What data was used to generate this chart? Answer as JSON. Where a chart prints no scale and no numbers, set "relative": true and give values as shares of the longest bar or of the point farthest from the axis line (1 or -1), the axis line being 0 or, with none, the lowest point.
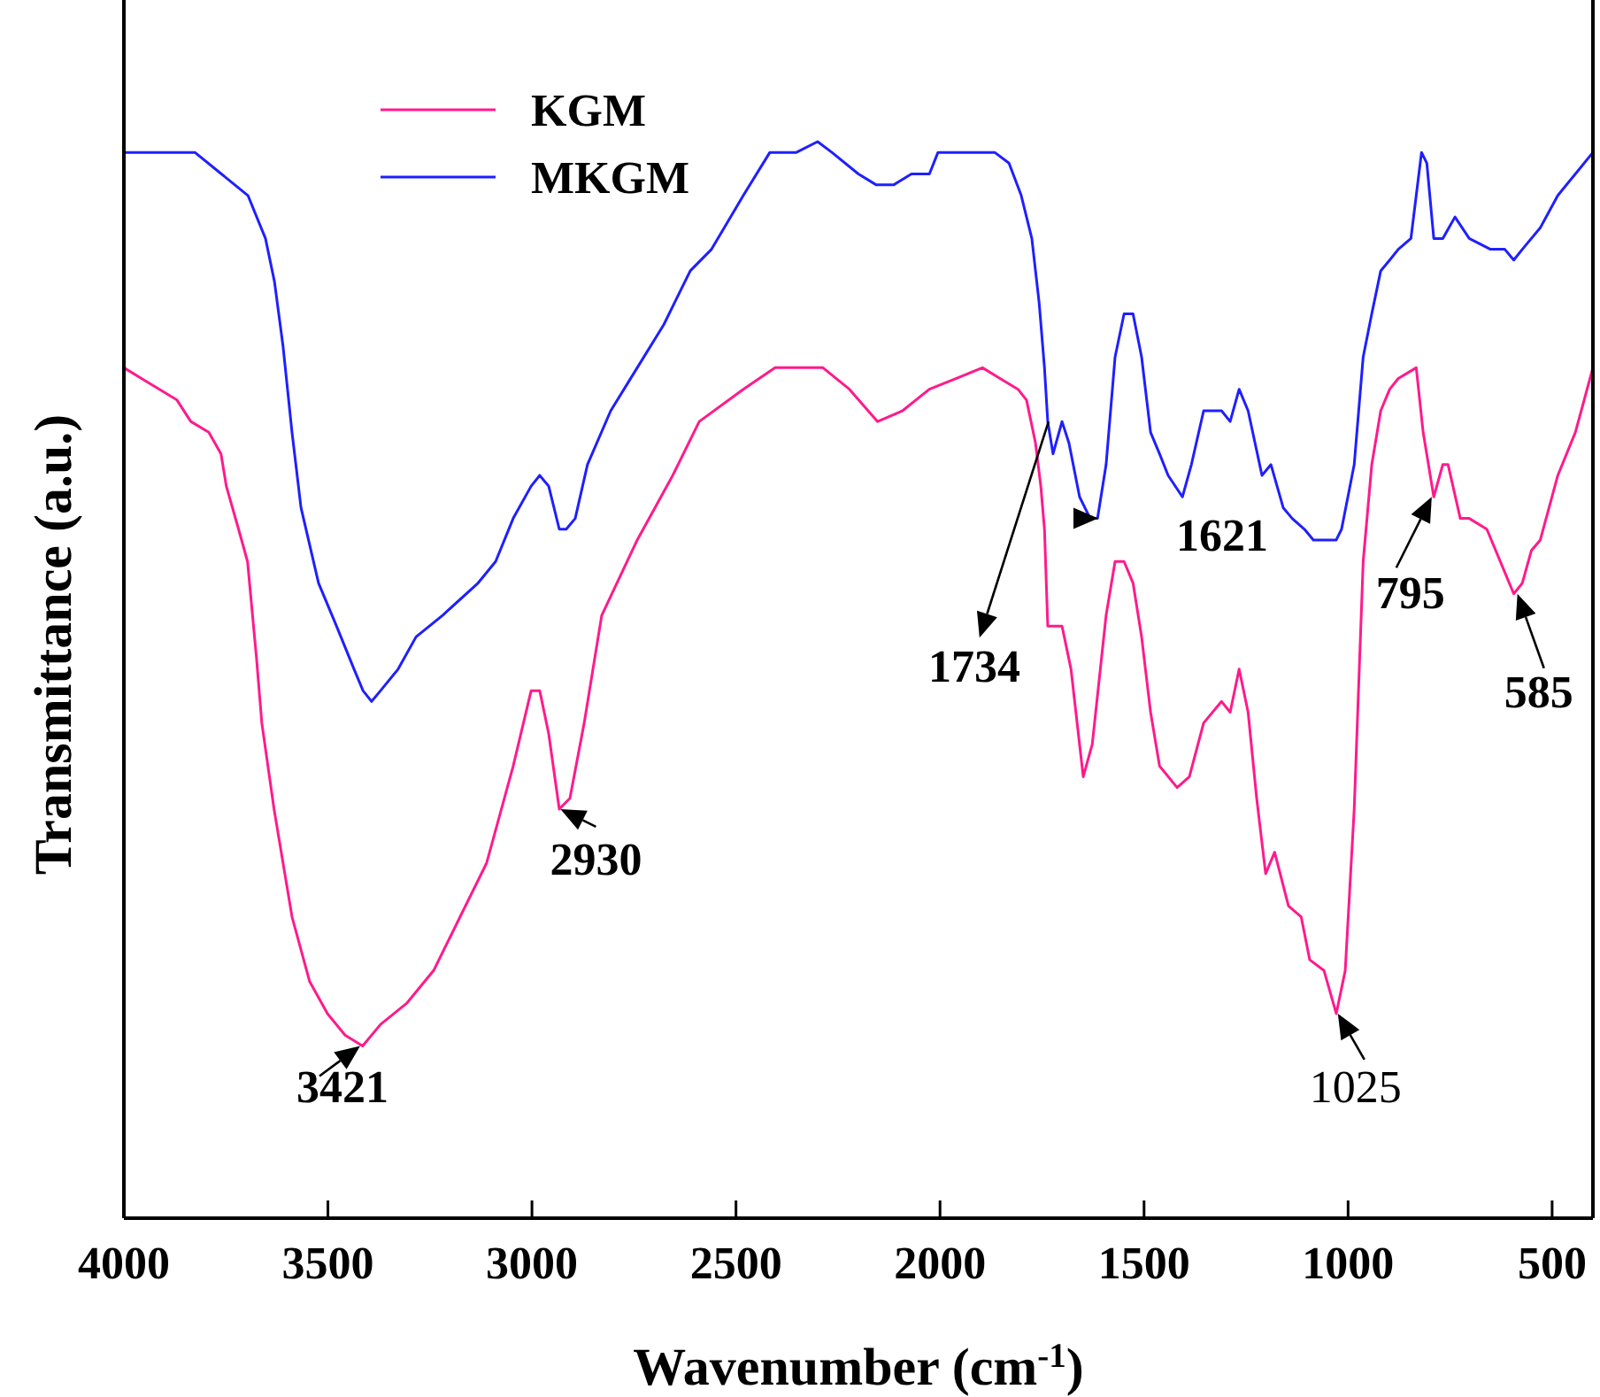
{
  "chart_data": {
    "type": "line",
    "relative": true,
    "xlabel": "Wavenumber (cm$^{-1}$)",
    "ylabel": "Transmittance (a.u.)",
    "xlim": [
      4000,
      400
    ],
    "xticks": [
      4000,
      3500,
      3000,
      2500,
      2000,
      1500,
      1000,
      500
    ],
    "legend": "top left",
    "tick_labels": "x",
    "line_style": "solid",
    "marker": "none",
    "series": [
      {
        "name": "KGM",
        "color": "#ff1a8c",
        "x": [
          4000,
          3957,
          3913,
          3870,
          3836,
          3792,
          3762,
          3749,
          3719,
          3697,
          3675,
          3662,
          3632,
          3588,
          3545,
          3501,
          3458,
          3415,
          3371,
          3306,
          3241,
          3176,
          3111,
          3046,
          3002,
          2981,
          2959,
          2933,
          2907,
          2872,
          2829,
          2742,
          2655,
          2590,
          2482,
          2404,
          2287,
          2222,
          2153,
          2092,
          2026,
          1961,
          1896,
          1853,
          1809,
          1788,
          1766,
          1753,
          1744,
          1736,
          1714,
          1701,
          1679,
          1658,
          1649,
          1627,
          1593,
          1571,
          1549,
          1527,
          1506,
          1484,
          1462,
          1419,
          1389,
          1354,
          1310,
          1289,
          1267,
          1245,
          1224,
          1202,
          1180,
          1146,
          1115,
          1094,
          1059,
          1029,
          1007,
          985,
          963,
          942,
          920,
          898,
          877,
          833,
          816,
          790,
          768,
          755,
          725,
          703,
          660,
          616,
          594,
          573,
          551,
          529,
          486,
          443,
          400
        ],
        "values": [
          0.79,
          0.78,
          0.77,
          0.76,
          0.74,
          0.73,
          0.71,
          0.68,
          0.64,
          0.61,
          0.52,
          0.46,
          0.38,
          0.28,
          0.22,
          0.19,
          0.17,
          0.16,
          0.18,
          0.2,
          0.23,
          0.28,
          0.33,
          0.42,
          0.49,
          0.49,
          0.45,
          0.38,
          0.39,
          0.46,
          0.56,
          0.63,
          0.69,
          0.74,
          0.77,
          0.79,
          0.79,
          0.77,
          0.74,
          0.75,
          0.77,
          0.78,
          0.79,
          0.78,
          0.77,
          0.76,
          0.72,
          0.68,
          0.64,
          0.55,
          0.55,
          0.55,
          0.51,
          0.44,
          0.41,
          0.44,
          0.56,
          0.61,
          0.61,
          0.59,
          0.54,
          0.47,
          0.42,
          0.4,
          0.41,
          0.46,
          0.48,
          0.47,
          0.51,
          0.47,
          0.39,
          0.32,
          0.34,
          0.29,
          0.28,
          0.24,
          0.23,
          0.19,
          0.23,
          0.38,
          0.61,
          0.7,
          0.75,
          0.77,
          0.78,
          0.79,
          0.73,
          0.67,
          0.7,
          0.7,
          0.65,
          0.65,
          0.64,
          0.6,
          0.58,
          0.59,
          0.62,
          0.63,
          0.69,
          0.73,
          0.79
        ]
      },
      {
        "name": "MKGM",
        "color": "#1f1fff",
        "x": [
          4000,
          3870,
          3826,
          3761,
          3696,
          3653,
          3631,
          3610,
          3588,
          3566,
          3523,
          3479,
          3436,
          3414,
          3393,
          3371,
          3328,
          3284,
          3219,
          3132,
          3089,
          3046,
          3002,
          2981,
          2959,
          2933,
          2916,
          2894,
          2864,
          2807,
          2742,
          2677,
          2612,
          2560,
          2482,
          2417,
          2352,
          2300,
          2265,
          2200,
          2157,
          2113,
          2070,
          2026,
          2005,
          1961,
          1896,
          1866,
          1831,
          1801,
          1775,
          1757,
          1744,
          1736,
          1723,
          1701,
          1684,
          1658,
          1632,
          1614,
          1593,
          1571,
          1549,
          1527,
          1506,
          1484,
          1462,
          1441,
          1406,
          1384,
          1354,
          1310,
          1289,
          1267,
          1245,
          1211,
          1189,
          1159,
          1137,
          1107,
          1085,
          1029,
          1016,
          985,
          963,
          942,
          920,
          898,
          877,
          846,
          833,
          820,
          807,
          790,
          768,
          738,
          703,
          651,
          616,
          594,
          573,
          529,
          486,
          443,
          400
        ],
        "values": [
          0.99,
          0.99,
          0.99,
          0.97,
          0.95,
          0.91,
          0.87,
          0.81,
          0.73,
          0.66,
          0.59,
          0.55,
          0.51,
          0.49,
          0.48,
          0.49,
          0.51,
          0.54,
          0.56,
          0.59,
          0.61,
          0.65,
          0.68,
          0.69,
          0.68,
          0.64,
          0.64,
          0.65,
          0.7,
          0.75,
          0.79,
          0.83,
          0.88,
          0.9,
          0.95,
          0.99,
          0.99,
          1,
          0.99,
          0.97,
          0.96,
          0.96,
          0.97,
          0.97,
          0.99,
          0.99,
          0.99,
          0.99,
          0.98,
          0.95,
          0.91,
          0.85,
          0.79,
          0.74,
          0.71,
          0.74,
          0.72,
          0.67,
          0.65,
          0.65,
          0.7,
          0.8,
          0.84,
          0.84,
          0.8,
          0.73,
          0.71,
          0.69,
          0.67,
          0.7,
          0.75,
          0.75,
          0.74,
          0.77,
          0.75,
          0.69,
          0.7,
          0.66,
          0.65,
          0.64,
          0.63,
          0.63,
          0.64,
          0.7,
          0.8,
          0.84,
          0.88,
          0.89,
          0.9,
          0.91,
          0.95,
          0.99,
          0.98,
          0.91,
          0.91,
          0.93,
          0.91,
          0.9,
          0.9,
          0.89,
          0.9,
          0.92,
          0.95,
          0.97,
          0.99
        ]
      }
    ],
    "annotations": [
      {
        "text": "3421",
        "x": 3421,
        "y": 0.16
      },
      {
        "text": "2930",
        "x": 2930,
        "y": 0.38
      },
      {
        "text": "1734",
        "x": 1734,
        "y": 0.74
      },
      {
        "text": "1621",
        "x": 1621,
        "y": 0.65
      },
      {
        "text": "1025",
        "x": 1025,
        "y": 0.19
      },
      {
        "text": "795",
        "x": 795,
        "y": 0.67
      },
      {
        "text": "585",
        "x": 585,
        "y": 0.58
      }
    ]
  }
}
